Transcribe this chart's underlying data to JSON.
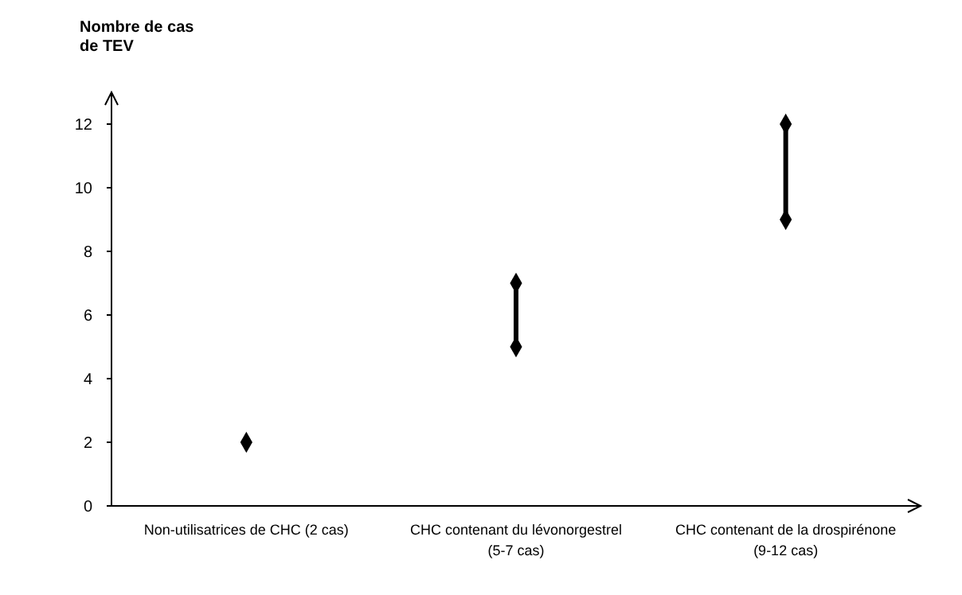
{
  "chart_data": {
    "type": "line",
    "ylabel": "Nombre de cas de TEV",
    "categories": [
      "Non-utilisatrices de CHC (2 cas)",
      "CHC contenant du lévonorgestrel (5-7 cas)",
      "CHC contenant de la drospirénone (9-12 cas)"
    ],
    "series": [
      {
        "color": "#000000",
        "x": [
          "Non-utilisatrices de CHC (2 cas)"
        ],
        "values": [
          2
        ]
      },
      {
        "color": "#000000",
        "x": [
          "CHC contenant du lévonorgestrel (5-7 cas)",
          "CHC contenant du lévonorgestrel (5-7 cas)"
        ],
        "values": [
          5,
          7
        ]
      },
      {
        "color": "#000000",
        "x": [
          "CHC contenant de la drospirénone (9-12 cas)",
          "CHC contenant de la drospirénone (9-12 cas)"
        ],
        "values": [
          9,
          12
        ]
      }
    ],
    "marker": "diamond",
    "line_style": "solid",
    "ylim": [
      0,
      13
    ],
    "yticks": [
      0,
      2,
      4,
      6,
      8,
      10,
      12
    ],
    "grid": false
  }
}
